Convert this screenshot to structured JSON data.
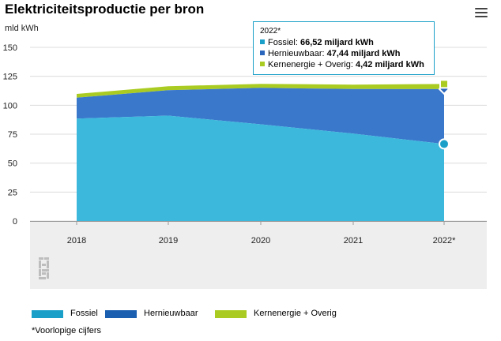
{
  "header": {
    "title": "Elektriciteitsproductie per bron",
    "menu_icon": "hamburger-menu-icon"
  },
  "chart_data": {
    "type": "area",
    "stacked": true,
    "unit_label": "mld kWh",
    "categories": [
      "2018",
      "2019",
      "2020",
      "2021",
      "2022*"
    ],
    "yticks": [
      "0",
      "25",
      "50",
      "75",
      "100",
      "125",
      "150"
    ],
    "ylim": [
      0,
      150
    ],
    "grid": "horizontal",
    "series": [
      {
        "name": "Fossiel",
        "color": "#3cb8dc",
        "values": [
          88.5,
          91.0,
          83.5,
          75.5,
          66.52
        ]
      },
      {
        "name": "Hernieuwbaar",
        "color": "#3a78cc",
        "values": [
          18.0,
          22.0,
          31.5,
          38.5,
          47.44
        ]
      },
      {
        "name": "Kernenergie + Overig",
        "color": "#aacc22",
        "values": [
          3.3,
          3.4,
          3.5,
          3.8,
          4.42
        ]
      }
    ],
    "legend_position": "bottom"
  },
  "tooltip": {
    "header": "2022*",
    "rows": [
      {
        "label": "Fossiel: ",
        "value": "66,52 miljard kWh",
        "color": "#1aa0c8"
      },
      {
        "label": "Hernieuwbaar: ",
        "value": "47,44 miljard kWh",
        "color": "#2a66bb"
      },
      {
        "label": "Kernenergie + Overig: ",
        "value": "4,42 miljard kWh",
        "color": "#aacc22"
      }
    ]
  },
  "legend": [
    {
      "label": "Fossiel",
      "color": "#1aa0c8"
    },
    {
      "label": "Hernieuwbaar",
      "color": "#1a5fb0"
    },
    {
      "label": "Kernenergie + Overig",
      "color": "#aacc22"
    }
  ],
  "footnote": "*Voorlopige cijfers",
  "logo": {
    "icon": "cbs-logo-icon"
  }
}
